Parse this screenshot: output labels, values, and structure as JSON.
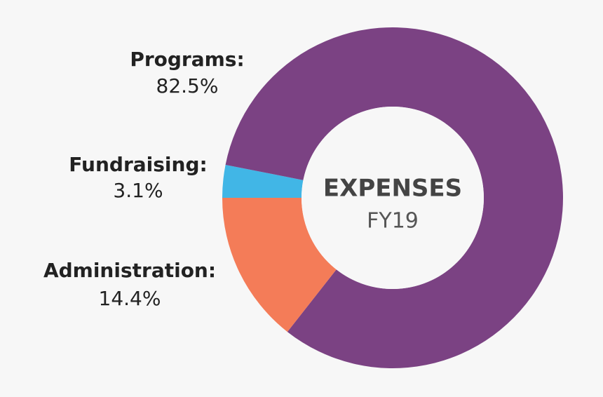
{
  "chart_data": {
    "type": "donut",
    "title": "EXPENSES",
    "subtitle": "FY19",
    "categories": [
      "Programs:",
      "Fundraising:",
      "Administration:"
    ],
    "values": [
      82.5,
      3.1,
      14.4
    ],
    "value_labels": [
      "82.5%",
      "3.1%",
      "14.4%"
    ],
    "colors": [
      "#7b4283",
      "#41b6e6",
      "#f47c58"
    ]
  }
}
